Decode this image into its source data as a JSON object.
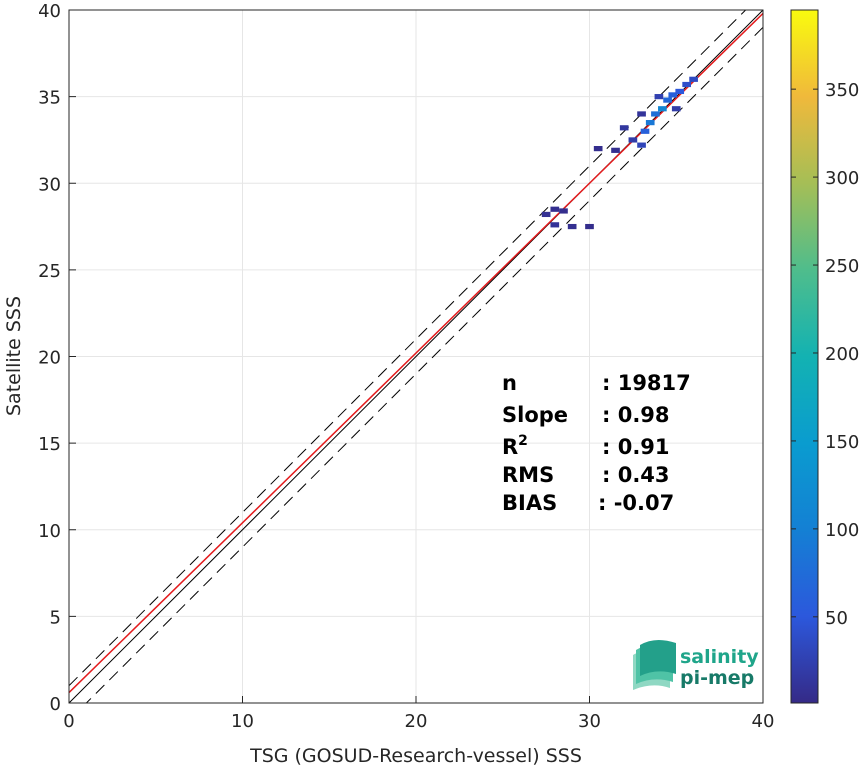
{
  "chart_data": {
    "type": "heatmap",
    "xlabel": "TSG (GOSUD-Research-vessel) SSS",
    "ylabel": "Satellite SSS",
    "xlim": [
      0,
      40
    ],
    "ylim": [
      0,
      40
    ],
    "xticks": [
      0,
      10,
      20,
      30,
      40
    ],
    "yticks": [
      0,
      5,
      10,
      15,
      20,
      25,
      30,
      35,
      40
    ],
    "grid": true,
    "colorbar": {
      "colormap": "parula",
      "min": 1,
      "max": 395,
      "ticks": [
        50,
        100,
        150,
        200,
        250,
        300,
        350
      ]
    },
    "reference_lines": {
      "one_to_one": {
        "slope": 1,
        "intercept": 0,
        "color": "#000000",
        "style": "solid"
      },
      "regression": {
        "slope": 0.98,
        "intercept": 0.6,
        "color": "#e31a1c",
        "style": "solid"
      },
      "plus_minus_band": {
        "offset": 1.0,
        "color": "#000000",
        "style": "dashed"
      }
    },
    "density_cells": [
      {
        "x": 27.5,
        "y": 28.2,
        "count": 8
      },
      {
        "x": 28.0,
        "y": 28.5,
        "count": 6
      },
      {
        "x": 28.5,
        "y": 28.4,
        "count": 5
      },
      {
        "x": 28.0,
        "y": 27.6,
        "count": 10
      },
      {
        "x": 29.0,
        "y": 27.5,
        "count": 6
      },
      {
        "x": 30.0,
        "y": 27.5,
        "count": 4
      },
      {
        "x": 30.5,
        "y": 32.0,
        "count": 5
      },
      {
        "x": 31.5,
        "y": 31.9,
        "count": 6
      },
      {
        "x": 32.5,
        "y": 32.5,
        "count": 20
      },
      {
        "x": 33.0,
        "y": 32.2,
        "count": 30
      },
      {
        "x": 33.2,
        "y": 33.0,
        "count": 60
      },
      {
        "x": 33.5,
        "y": 33.5,
        "count": 90
      },
      {
        "x": 33.8,
        "y": 34.0,
        "count": 80
      },
      {
        "x": 34.2,
        "y": 34.3,
        "count": 110
      },
      {
        "x": 34.5,
        "y": 34.8,
        "count": 70
      },
      {
        "x": 34.8,
        "y": 35.1,
        "count": 60
      },
      {
        "x": 35.2,
        "y": 35.3,
        "count": 50
      },
      {
        "x": 35.6,
        "y": 35.7,
        "count": 40
      },
      {
        "x": 36.0,
        "y": 36.0,
        "count": 35
      },
      {
        "x": 32.0,
        "y": 33.2,
        "count": 15
      },
      {
        "x": 33.0,
        "y": 34.0,
        "count": 12
      },
      {
        "x": 34.0,
        "y": 35.0,
        "count": 25
      },
      {
        "x": 35.0,
        "y": 34.3,
        "count": 20
      }
    ],
    "annotations": [
      {
        "label": "n",
        "value": ": 19817"
      },
      {
        "label": "Slope",
        "value": ": 0.98"
      },
      {
        "label": "R",
        "superscript": "2",
        "value": ": 0.91"
      },
      {
        "label": "RMS",
        "value": ": 0.43"
      },
      {
        "label": "BIAS",
        "value": ": -0.07"
      }
    ]
  },
  "logo": {
    "line1": "salinity",
    "line2": "pi-mep",
    "color": "#1fa58a"
  }
}
